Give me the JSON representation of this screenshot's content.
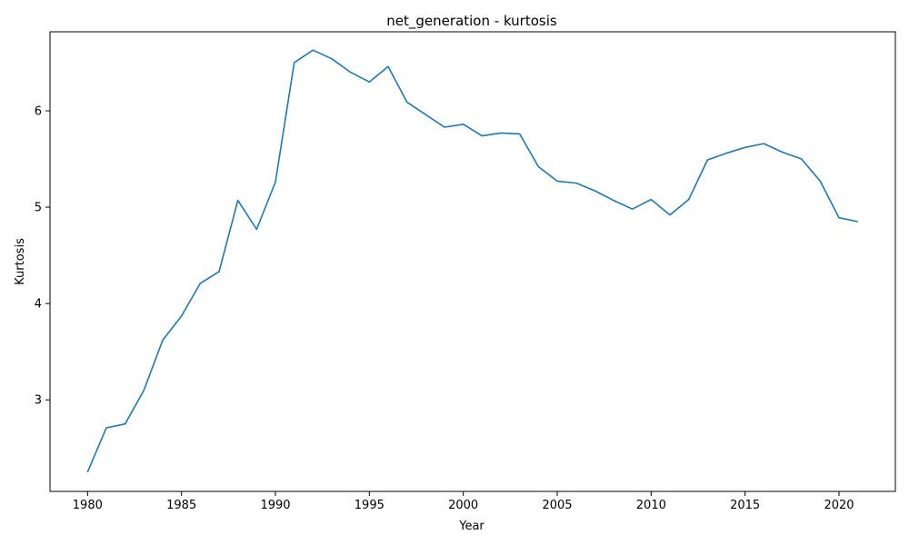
{
  "chart_data": {
    "type": "line",
    "title": "net_generation - kurtosis",
    "xlabel": "Year",
    "ylabel": "Kurtosis",
    "xlim": [
      1978,
      2023
    ],
    "ylim": [
      2.05,
      6.82
    ],
    "xticks": [
      1980,
      1985,
      1990,
      1995,
      2000,
      2005,
      2010,
      2015,
      2020
    ],
    "yticks": [
      3,
      4,
      5,
      6
    ],
    "grid": false,
    "legend": "none",
    "series": [
      {
        "color": "#1f77b4",
        "x": [
          1980,
          1981,
          1982,
          1983,
          1984,
          1985,
          1986,
          1987,
          1988,
          1989,
          1990,
          1991,
          1992,
          1993,
          1994,
          1995,
          1996,
          1997,
          1998,
          1999,
          2000,
          2001,
          2002,
          2003,
          2004,
          2005,
          2006,
          2007,
          2008,
          2009,
          2010,
          2011,
          2012,
          2013,
          2014,
          2015,
          2016,
          2017,
          2018,
          2019,
          2020,
          2021
        ],
        "values": [
          2.25,
          2.71,
          2.75,
          3.1,
          3.62,
          3.87,
          4.21,
          4.33,
          5.07,
          4.77,
          5.26,
          6.5,
          6.63,
          6.54,
          6.4,
          6.3,
          6.46,
          6.09,
          5.96,
          5.83,
          5.86,
          5.74,
          5.77,
          5.76,
          5.42,
          5.27,
          5.25,
          5.17,
          5.07,
          4.98,
          5.08,
          4.92,
          5.08,
          5.49,
          5.56,
          5.62,
          5.66,
          5.57,
          5.5,
          5.27,
          4.89,
          4.85
        ]
      }
    ]
  }
}
